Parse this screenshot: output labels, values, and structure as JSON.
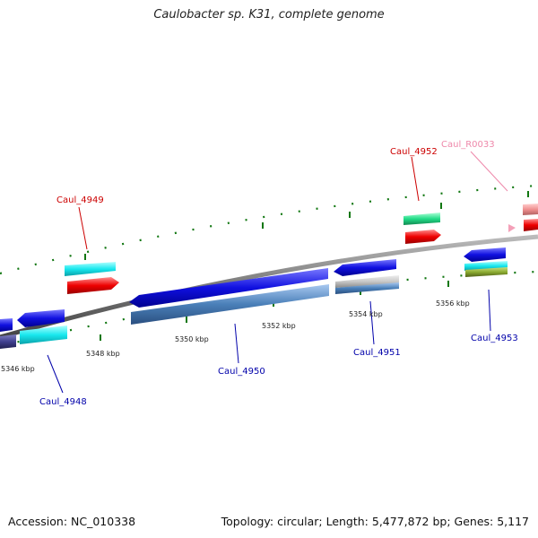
{
  "title": "Caulobacter sp. K31, complete genome",
  "footer": {
    "accession": "Accession: NC_010338",
    "summary": "Topology: circular; Length: 5,477,872 bp; Genes: 5,117"
  },
  "ticks": [
    "5346 kbp",
    "5348 kbp",
    "5350 kbp",
    "5352 kbp",
    "5354 kbp",
    "5356 kbp"
  ],
  "gene_labels": {
    "caul_4949": "Caul_4949",
    "caul_4952": "Caul_4952",
    "caul_r0033": "Caul_R0033",
    "caul_4948": "Caul_4948",
    "caul_4950": "Caul_4950",
    "caul_4951": "Caul_4951",
    "caul_4953": "Caul_4953"
  },
  "colors": {
    "forward_label": "#cc0000",
    "reverse_label": "#0000aa",
    "rna_label": "#ee88aa",
    "cds_blue": "#1010e0",
    "cds_steel": "#4a7fb8",
    "cds_cyan": "#18e8ee",
    "cds_red": "#ee0000",
    "cds_green": "#22dd88",
    "backbone": "#777777",
    "dots": "#117711"
  }
}
